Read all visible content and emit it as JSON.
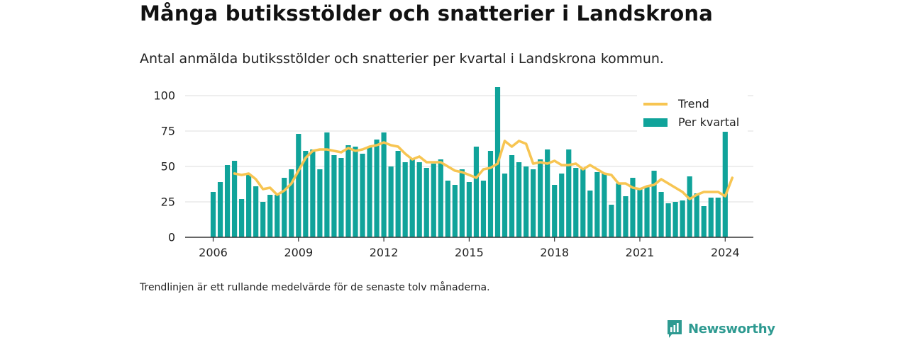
{
  "title": "Många butiksstölder och snatterier i Landskrona",
  "subtitle": "Antal anmälda butiksstölder och snatterier per kvartal i Landskrona kommun.",
  "note": "Trendlinjen är ett rullande medelvärde för de senaste tolv månaderna.",
  "brand": "Newsworthy",
  "colors": {
    "bar": "#10a39a",
    "trend": "#f7c552",
    "axis": "#333333",
    "grid": "#dddddd",
    "brand": "#2e9a91"
  },
  "chart_data": {
    "type": "bar",
    "title": "",
    "xlabel": "",
    "ylabel": "",
    "ylim": [
      0,
      110
    ],
    "grid": true,
    "legend_position": "top-right",
    "y_ticks": [
      "0",
      "25",
      "50",
      "75",
      "100"
    ],
    "x_tick_labels": [
      "2006",
      "2009",
      "2012",
      "2015",
      "2018",
      "2021",
      "2024"
    ],
    "x_start": "2006-Q1",
    "series": [
      {
        "name": "Per kvartal",
        "type": "bar",
        "values": [
          32,
          39,
          51,
          54,
          27,
          44,
          36,
          25,
          30,
          30,
          42,
          48,
          73,
          61,
          62,
          48,
          74,
          58,
          56,
          65,
          64,
          59,
          64,
          69,
          74,
          50,
          61,
          53,
          55,
          53,
          49,
          52,
          55,
          40,
          37,
          48,
          39,
          64,
          40,
          61,
          106,
          45,
          58,
          53,
          50,
          48,
          55,
          62,
          37,
          45,
          62,
          49,
          48,
          33,
          46,
          45,
          23,
          38,
          29,
          42,
          34,
          36,
          47,
          32,
          24,
          25,
          26,
          43,
          31,
          22,
          28,
          28,
          81
        ]
      },
      {
        "name": "Trend",
        "type": "line",
        "start_index": 3,
        "values": [
          45,
          44,
          45,
          41,
          34,
          35,
          30,
          33,
          38,
          47,
          56,
          61,
          62,
          62,
          61,
          60,
          63,
          61,
          62,
          64,
          65,
          67,
          65,
          64,
          59,
          55,
          57,
          53,
          53,
          53,
          50,
          47,
          46,
          44,
          42,
          48,
          49,
          52,
          68,
          64,
          68,
          66,
          52,
          53,
          52,
          54,
          51,
          51,
          52,
          48,
          51,
          48,
          45,
          44,
          38,
          38,
          35,
          34,
          36,
          37,
          41,
          38,
          35,
          32,
          27,
          30,
          32,
          32,
          32,
          29,
          42
        ]
      }
    ]
  }
}
